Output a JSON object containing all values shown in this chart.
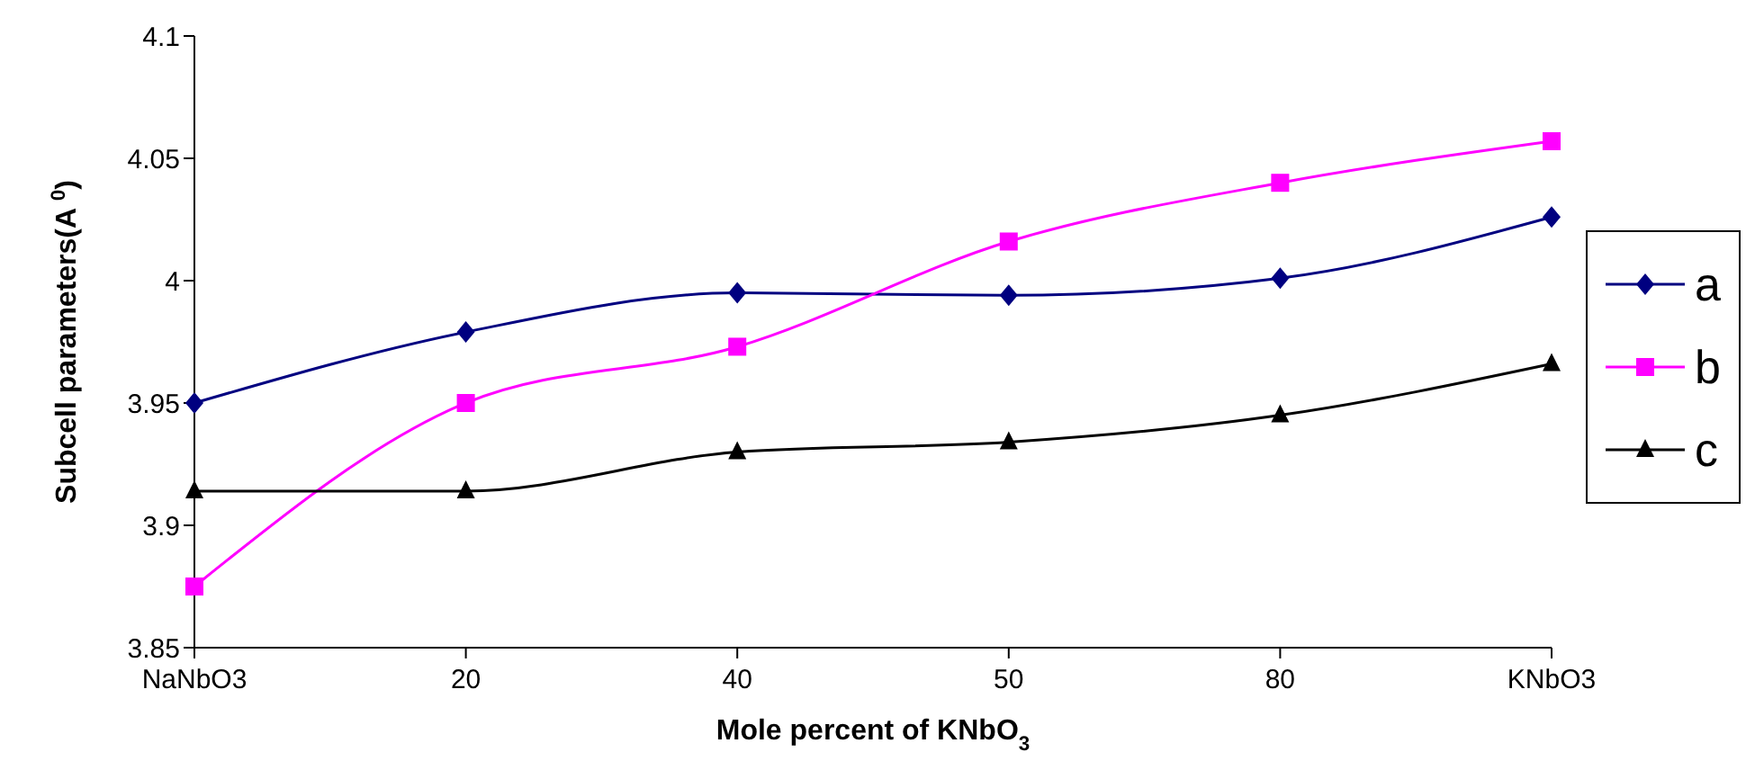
{
  "chart_data": {
    "type": "line",
    "xlabel": "Mole percent of KNbO$_{3}$",
    "ylabel": "Subcell parameters(A $^{0}$)",
    "categories": [
      "NaNbO3",
      "20",
      "40",
      "50",
      "80",
      "KNbO3"
    ],
    "series": [
      {
        "name": "a",
        "color": "#000080",
        "marker": "diamond",
        "values": [
          3.95,
          3.979,
          3.995,
          3.994,
          4.001,
          4.026
        ]
      },
      {
        "name": "b",
        "color": "#ff00ff",
        "marker": "square",
        "values": [
          3.875,
          3.95,
          3.973,
          4.016,
          4.04,
          4.057
        ]
      },
      {
        "name": "c",
        "color": "#000000",
        "marker": "triangle",
        "values": [
          3.914,
          3.914,
          3.93,
          3.934,
          3.945,
          3.966
        ]
      }
    ],
    "ylim": [
      3.85,
      4.1
    ],
    "yticks": [
      3.85,
      3.9,
      3.95,
      4,
      4.05,
      4.1
    ],
    "grid": false,
    "legend": "right"
  }
}
